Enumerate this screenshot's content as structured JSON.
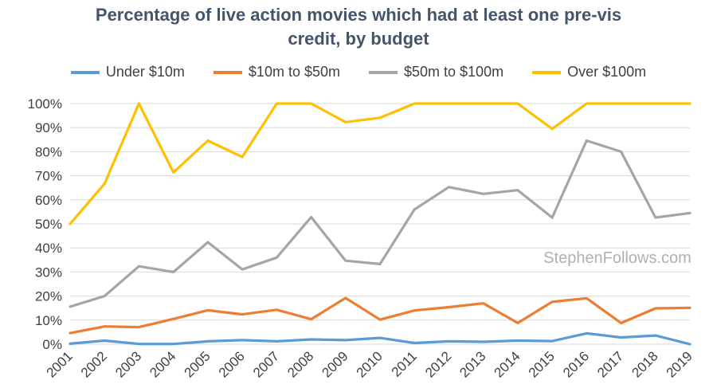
{
  "chart_data": {
    "type": "line",
    "title_line1": "Percentage of live action movies which had at least one pre-vis",
    "title_line2": "credit, by budget",
    "xlabel": "",
    "ylabel": "",
    "ylim": [
      0,
      100
    ],
    "yticks": [
      0,
      10,
      20,
      30,
      40,
      50,
      60,
      70,
      80,
      90,
      100
    ],
    "ytick_labels": [
      "0%",
      "10%",
      "20%",
      "30%",
      "40%",
      "50%",
      "60%",
      "70%",
      "80%",
      "90%",
      "100%"
    ],
    "grid": true,
    "legend_position": "top",
    "x": [
      "2001",
      "2002",
      "2003",
      "2004",
      "2005",
      "2006",
      "2007",
      "2008",
      "2009",
      "2010",
      "2011",
      "2012",
      "2013",
      "2014",
      "2015",
      "2016",
      "2017",
      "2018",
      "2019"
    ],
    "series": [
      {
        "name": "Under $10m",
        "color": "#5b9bd5",
        "values": [
          0.2,
          1.5,
          0.1,
          0.1,
          1.2,
          1.7,
          1.2,
          2.0,
          1.7,
          2.6,
          0.5,
          1.2,
          1.0,
          1.5,
          1.3,
          4.5,
          2.8,
          3.6,
          0.0
        ]
      },
      {
        "name": "$10m to $50m",
        "color": "#ed7d31",
        "values": [
          4.6,
          7.4,
          7.1,
          10.5,
          14.1,
          12.4,
          14.3,
          10.4,
          19.2,
          10.2,
          14.0,
          15.4,
          17.0,
          8.8,
          17.6,
          19.1,
          8.8,
          14.9,
          15.1
        ]
      },
      {
        "name": "$50m to $100m",
        "color": "#a5a5a5",
        "values": [
          15.6,
          20.0,
          32.4,
          30.0,
          42.4,
          31.1,
          36.0,
          52.8,
          34.7,
          33.3,
          56.0,
          65.3,
          62.5,
          64.0,
          52.6,
          84.6,
          80.0,
          52.6,
          54.5
        ]
      },
      {
        "name": "Over $100m",
        "color": "#ffc000",
        "values": [
          50.0,
          66.7,
          100.0,
          71.4,
          84.6,
          77.8,
          100.0,
          100.0,
          92.3,
          94.1,
          100.0,
          100.0,
          100.0,
          100.0,
          89.5,
          100.0,
          100.0,
          100.0,
          100.0
        ]
      }
    ],
    "watermark": "StephenFollows.com"
  },
  "colors": {
    "title": "#44546a",
    "grid": "#d9d9d9",
    "text": "#404040"
  }
}
